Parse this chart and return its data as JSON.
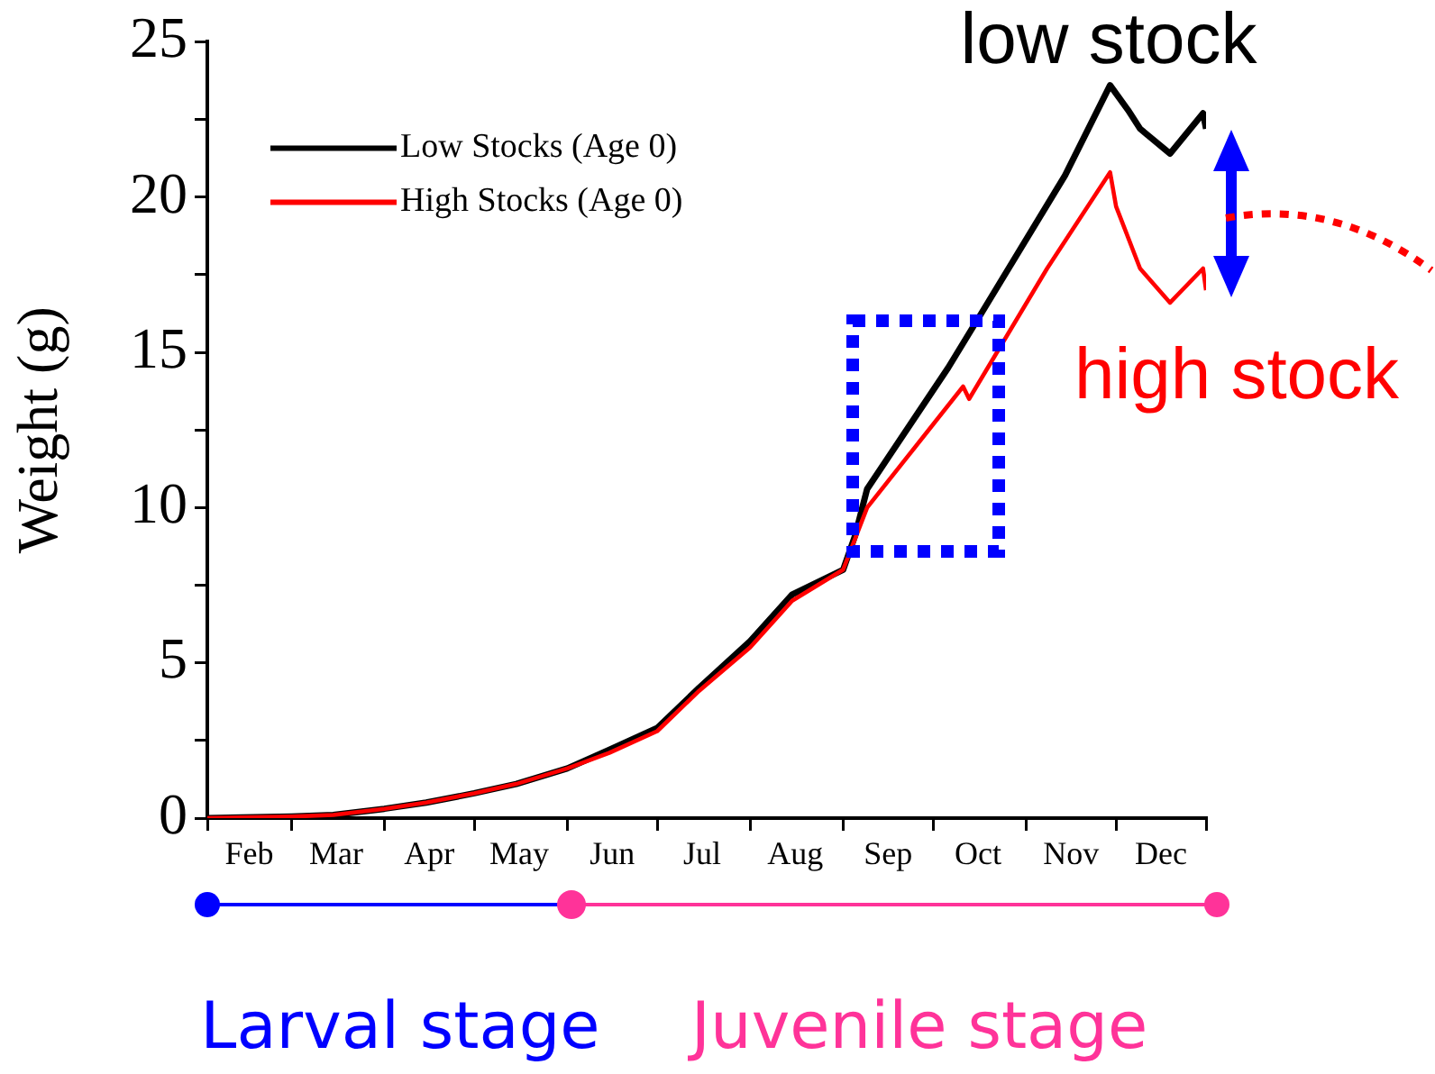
{
  "chart_data": {
    "type": "line",
    "ylabel": "Weight (g)",
    "xlim": [
      "--02-01",
      "--12-31"
    ],
    "xticks": [
      {
        "value": "--02-01",
        "label": null
      },
      {
        "value": "--02-15",
        "label": "Feb"
      },
      {
        "value": "--03-01",
        "label": null
      },
      {
        "value": "--03-16",
        "label": "Mar"
      },
      {
        "value": "--04-01",
        "label": null
      },
      {
        "value": "--04-16",
        "label": "Apr"
      },
      {
        "value": "--05-01",
        "label": null
      },
      {
        "value": "--05-16",
        "label": "May"
      },
      {
        "value": "--06-01",
        "label": null
      },
      {
        "value": "--06-16",
        "label": "Jun"
      },
      {
        "value": "--07-01",
        "label": null
      },
      {
        "value": "--07-16",
        "label": "Jul"
      },
      {
        "value": "--08-01",
        "label": null
      },
      {
        "value": "--08-16",
        "label": "Aug"
      },
      {
        "value": "--09-01",
        "label": null
      },
      {
        "value": "--09-16",
        "label": "Sep"
      },
      {
        "value": "--10-01",
        "label": null
      },
      {
        "value": "--10-16",
        "label": "Oct"
      },
      {
        "value": "--11-01",
        "label": null
      },
      {
        "value": "--11-16",
        "label": "Nov"
      },
      {
        "value": "--12-01",
        "label": null
      },
      {
        "value": "--12-16",
        "label": "Dec"
      },
      {
        "value": "--12-31",
        "label": null
      }
    ],
    "ylim": [
      0,
      25
    ],
    "yticks": [
      0,
      {
        "value": 2.5,
        "label": null
      },
      5,
      {
        "value": 7.5,
        "label": null
      },
      10,
      {
        "value": 12.5,
        "label": null
      },
      15,
      {
        "value": 17.5,
        "label": null
      },
      20,
      {
        "value": 22.5,
        "label": null
      },
      25
    ],
    "x": [
      "--02-01",
      "--03-01",
      "--03-15",
      "--04-01",
      "--04-15",
      "--05-01",
      "--05-15",
      "--06-01",
      "--06-15",
      "--07-01",
      "--07-15",
      "--08-01",
      "--08-15",
      "--09-01",
      "--09-05",
      "--09-09",
      "--10-06",
      "--10-18",
      "--11-14",
      "--11-29",
      "--12-05",
      "--12-09",
      "--12-19",
      "--12-30",
      "--12-31"
    ],
    "series": [
      {
        "name": "Low Stocks (Age 0)",
        "color": "#000000",
        "values": [
          0,
          0.05,
          0.1,
          0.3,
          0.5,
          0.8,
          1.1,
          1.6,
          2.2,
          2.9,
          4.2,
          5.7,
          7.2,
          8.0,
          9.1,
          10.6,
          14.5,
          16.4,
          20.7,
          23.6,
          22.8,
          22.2,
          21.4,
          22.7,
          22.2
        ]
      },
      {
        "name": "High Stocks (Age 0)",
        "color": "#ff0000",
        "x": [
          "--02-01",
          "--03-01",
          "--03-15",
          "--04-01",
          "--04-15",
          "--05-01",
          "--05-15",
          "--06-01",
          "--06-15",
          "--07-01",
          "--07-15",
          "--08-01",
          "--08-15",
          "--09-01",
          "--09-09",
          "--10-11",
          "--10-13",
          "--11-08",
          "--11-29",
          "--12-01",
          "--12-09",
          "--12-19",
          "--12-30",
          "--12-31"
        ],
        "values": [
          0,
          0.05,
          0.1,
          0.3,
          0.5,
          0.8,
          1.1,
          1.6,
          2.1,
          2.8,
          4.1,
          5.5,
          7.0,
          8.0,
          10.0,
          13.9,
          13.5,
          17.7,
          20.8,
          19.7,
          17.7,
          16.6,
          17.7,
          17.0
        ]
      }
    ],
    "legend": "top left",
    "grid": false,
    "marker": "none",
    "line_style": "solid",
    "annotations": [
      "low stock",
      "high stock",
      "Larval stage",
      "Juvenile stage"
    ]
  }
}
